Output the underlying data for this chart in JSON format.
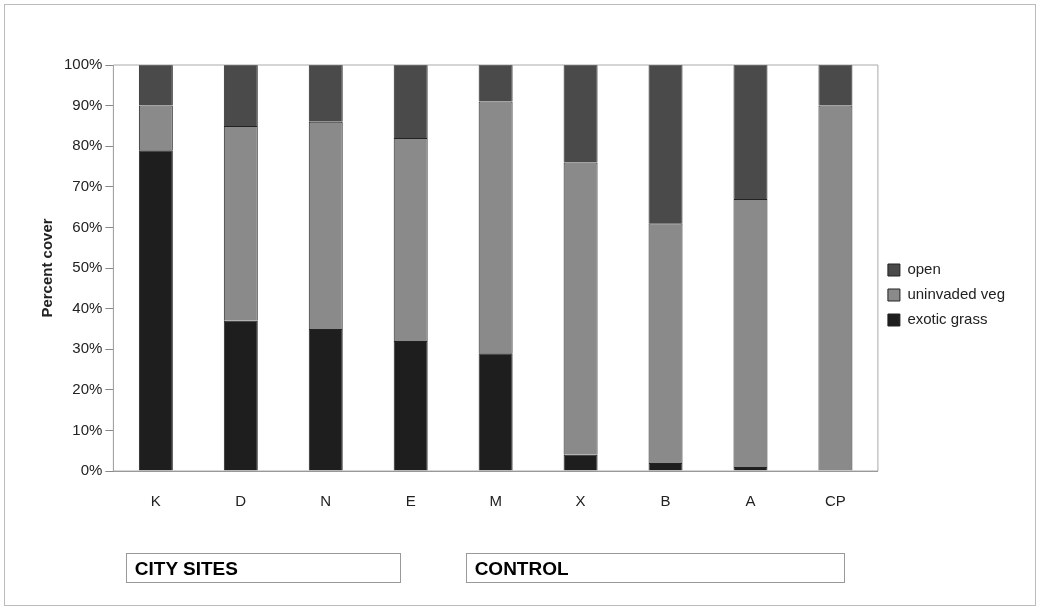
{
  "chart_data": {
    "type": "bar",
    "stacked": true,
    "ylabel": "Percent cover",
    "categories": [
      "K",
      "D",
      "N",
      "E",
      "M",
      "X",
      "B",
      "A",
      "CP"
    ],
    "series": [
      {
        "name": "exotic grass",
        "color": "#1e1e1e",
        "values": [
          79,
          37,
          35,
          32,
          29,
          4,
          2,
          1,
          0
        ]
      },
      {
        "name": "uninvaded veg",
        "color": "#8a8a8a",
        "values": [
          11,
          48,
          51,
          50,
          62,
          72,
          59,
          66,
          90
        ]
      },
      {
        "name": "open",
        "color": "#4a4a4a",
        "values": [
          10,
          15,
          14,
          18,
          9,
          24,
          39,
          33,
          10
        ]
      }
    ],
    "ylim": [
      0,
      100
    ],
    "yticks": [
      {
        "value": 0,
        "label": "0%"
      },
      {
        "value": 10,
        "label": "10%"
      },
      {
        "value": 20,
        "label": "20%"
      },
      {
        "value": 30,
        "label": "30%"
      },
      {
        "value": 40,
        "label": "40%"
      },
      {
        "value": 50,
        "label": "50%"
      },
      {
        "value": 60,
        "label": "60%"
      },
      {
        "value": 70,
        "label": "70%"
      },
      {
        "value": 80,
        "label": "80%"
      },
      {
        "value": 90,
        "label": "90%"
      },
      {
        "value": 100,
        "label": "100%"
      }
    ],
    "grid": false,
    "legend": "right",
    "annotations": [
      "CITY SITES",
      "CONTROL"
    ]
  }
}
